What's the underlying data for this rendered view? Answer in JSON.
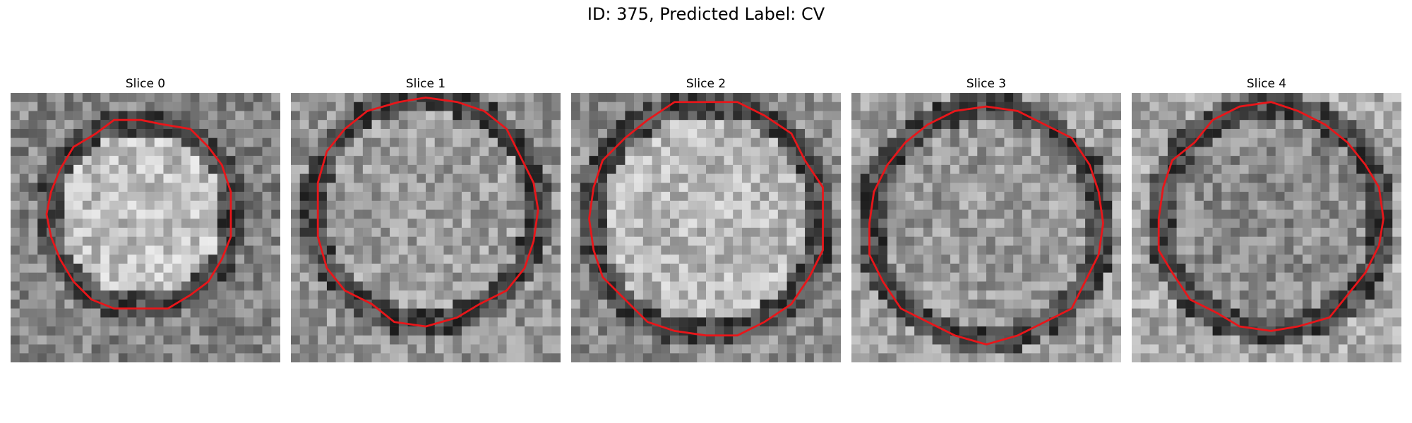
{
  "figure": {
    "title": "ID: 375, Predicted Label: CV",
    "contour_color": "#e8161a",
    "colormap": "gray",
    "panels": [
      {
        "title": "Slice 0"
      },
      {
        "title": "Slice 1"
      },
      {
        "title": "Slice 2"
      },
      {
        "title": "Slice 3"
      },
      {
        "title": "Slice 4"
      }
    ]
  }
}
